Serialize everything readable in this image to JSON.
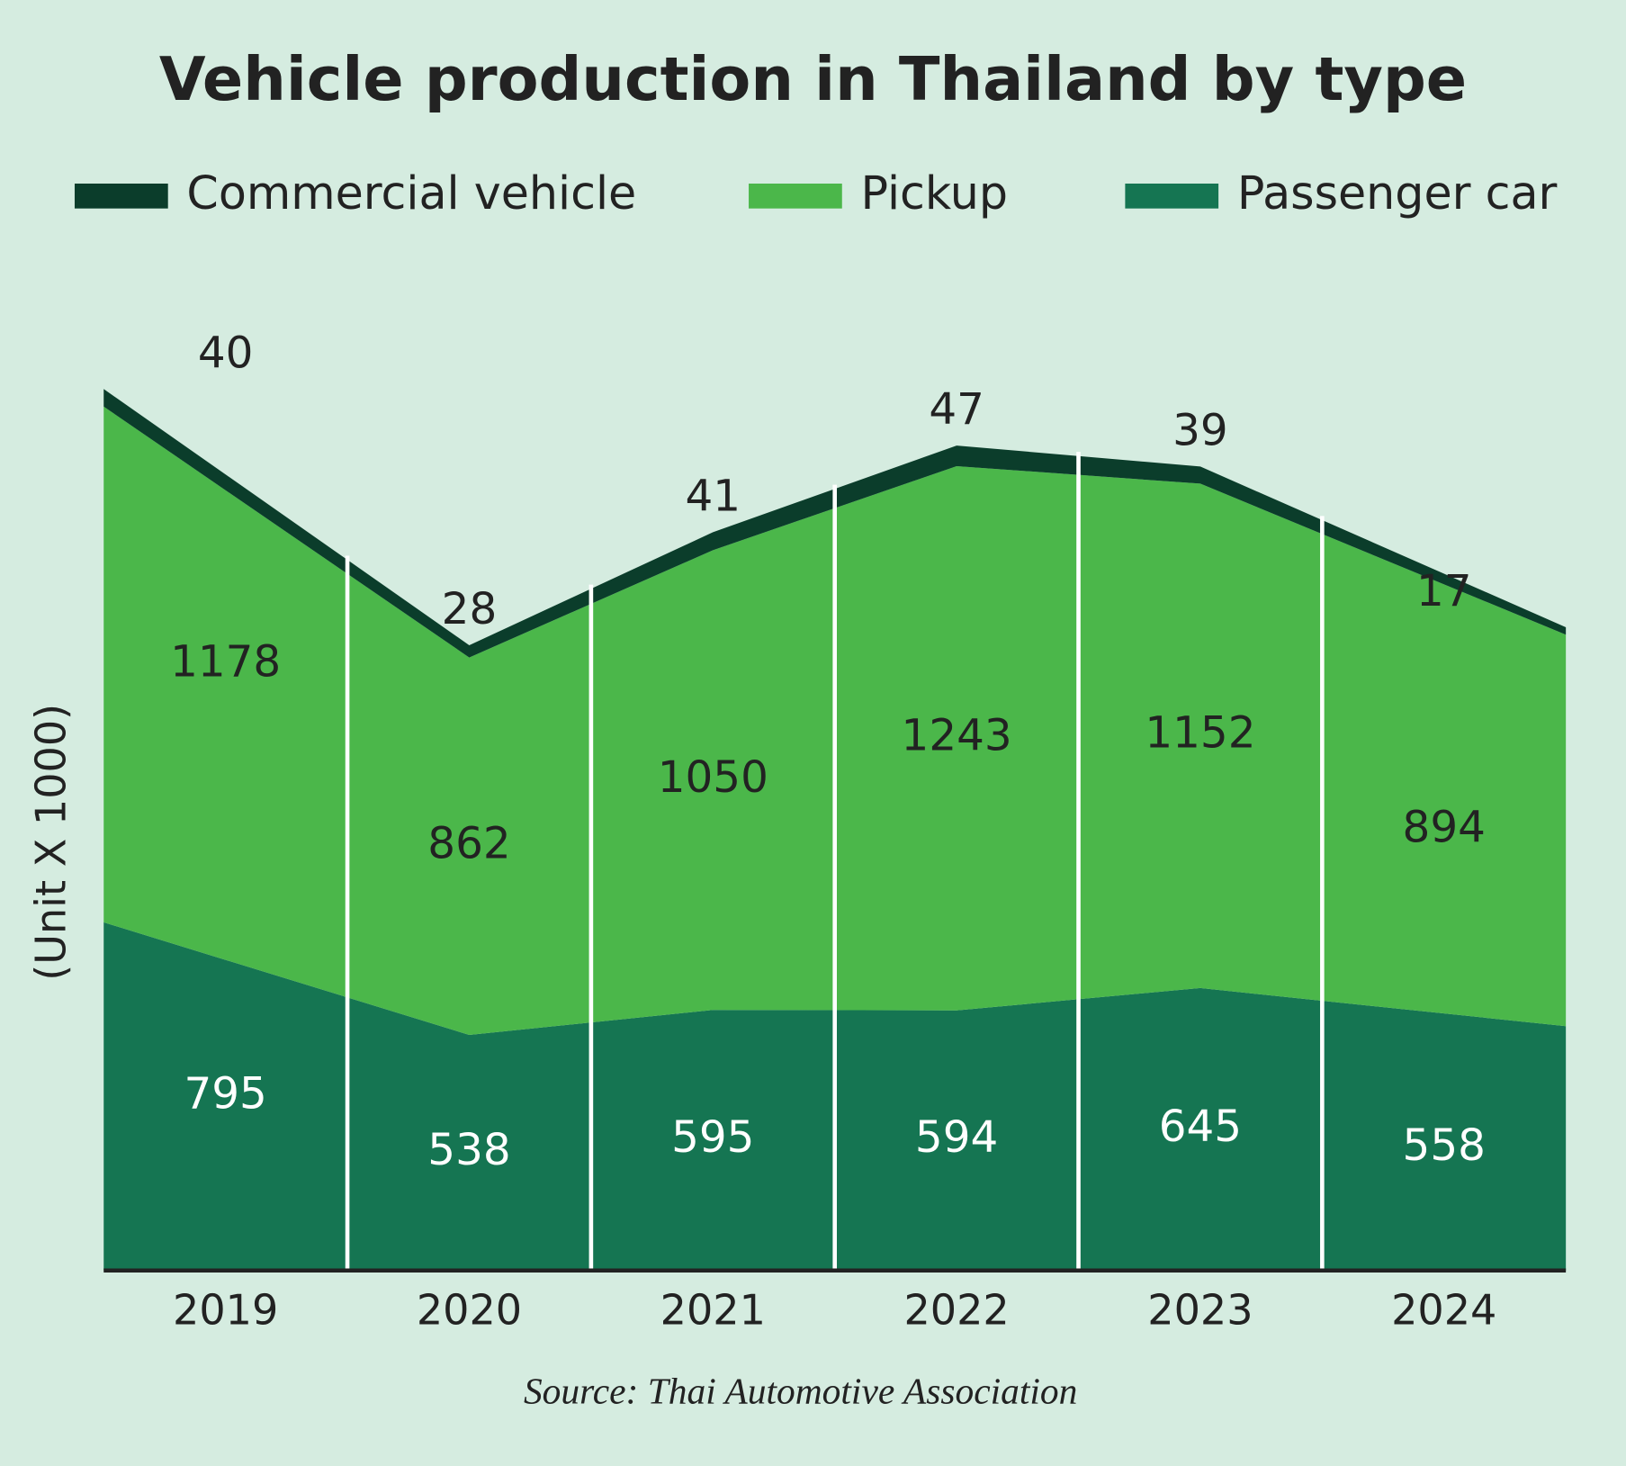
{
  "chart_data": {
    "type": "stacked_area",
    "title": "Vehicle production in Thailand by type",
    "y_label": "(Unit X 1000)",
    "source": "Source: Thai Automotive Association",
    "categories": [
      "2019",
      "2020",
      "2021",
      "2022",
      "2023",
      "2024"
    ],
    "series": [
      {
        "name": "Commercial vehicle",
        "color": "#0b3d2b",
        "values": [
          40,
          28,
          41,
          47,
          39,
          17
        ]
      },
      {
        "name": "Pickup",
        "color": "#4bb74a",
        "values": [
          1178,
          862,
          1050,
          1243,
          1152,
          894
        ]
      },
      {
        "name": "Passenger car",
        "color": "#157552",
        "values": [
          795,
          538,
          595,
          594,
          645,
          558
        ]
      }
    ]
  }
}
